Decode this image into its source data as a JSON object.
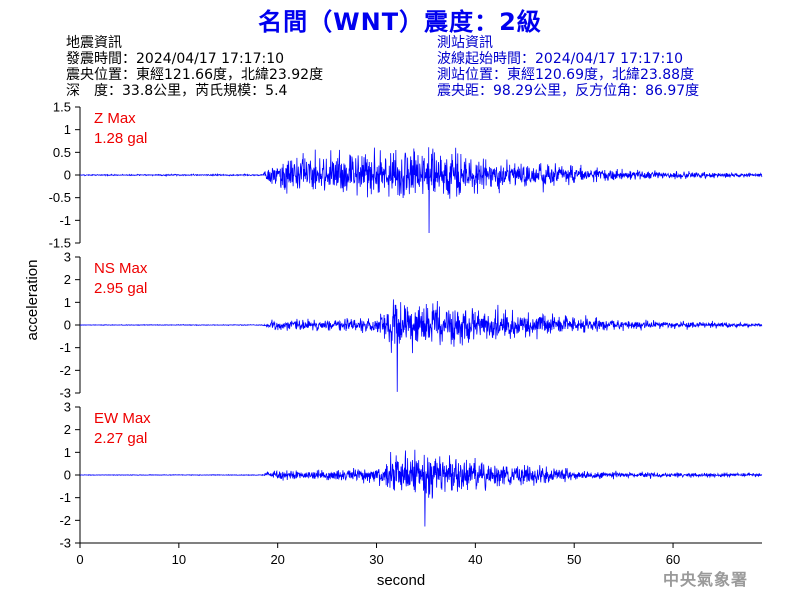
{
  "title": "名間（WNT）震度：2級",
  "quake_info": {
    "heading": "地震資訊",
    "time": "發震時間：2024/04/17 17:17:10",
    "epicenter": "震央位置：東經121.66度，北緯23.92度",
    "depth_magnitude": "深　度：33.8公里，芮氏規模：5.4"
  },
  "station_info": {
    "heading": "測站資訊",
    "wave_start": "波線起始時間：2024/04/17 17:17:10",
    "location": "測站位置：東經120.69度，北緯23.88度",
    "distance_azimuth": "震央距：98.29公里，反方位角：86.97度"
  },
  "watermark": "中央氣象署",
  "colors": {
    "title": "#0000ee",
    "trace": "#0000ff",
    "max_label": "#ee0000",
    "station_info": "#0000cc"
  },
  "chart_data": [
    {
      "type": "line",
      "component": "Z",
      "max_label": "Z Max",
      "max_value": "1.28 gal",
      "ylabel": "acceleration",
      "xlabel": "",
      "ylim": [
        -1.5,
        1.5
      ],
      "yticks": [
        1.5,
        1,
        0.5,
        0,
        -0.5,
        -1,
        -1.5
      ],
      "xlim": [
        0,
        69
      ],
      "envelope": {
        "x": [
          0,
          18.5,
          19.5,
          22,
          26,
          30,
          33,
          35,
          37,
          40,
          44,
          50,
          55,
          60,
          69
        ],
        "amp": [
          0.02,
          0.03,
          0.55,
          0.75,
          0.85,
          0.9,
          0.95,
          0.95,
          0.8,
          0.7,
          0.5,
          0.35,
          0.2,
          0.12,
          0.07
        ]
      },
      "peak": {
        "x": 35.3,
        "y": -1.28
      }
    },
    {
      "type": "line",
      "component": "NS",
      "max_label": "NS Max",
      "max_value": "2.95 gal",
      "ylabel": "acceleration",
      "xlabel": "",
      "ylim": [
        -3,
        3
      ],
      "yticks": [
        3,
        2,
        1,
        0,
        -1,
        -2,
        -3
      ],
      "xlim": [
        0,
        69
      ],
      "envelope": {
        "x": [
          0,
          18.5,
          19.5,
          25,
          30,
          31.5,
          33,
          35,
          37,
          40,
          44,
          50,
          55,
          60,
          69
        ],
        "amp": [
          0.02,
          0.03,
          0.4,
          0.45,
          0.6,
          1.9,
          2.0,
          1.9,
          1.8,
          1.4,
          1.0,
          0.6,
          0.4,
          0.25,
          0.12
        ]
      },
      "peak": {
        "x": 32.1,
        "y": -2.95
      }
    },
    {
      "type": "line",
      "component": "EW",
      "max_label": "EW Max",
      "max_value": "2.27 gal",
      "ylabel": "acceleration",
      "xlabel": "second",
      "ylim": [
        -3,
        3
      ],
      "yticks": [
        3,
        2,
        1,
        0,
        -1,
        -2,
        -3
      ],
      "xlim": [
        0,
        69
      ],
      "xticks": [
        0,
        10,
        20,
        30,
        40,
        50,
        60
      ],
      "envelope": {
        "x": [
          0,
          18.5,
          19.5,
          25,
          30,
          31.5,
          33,
          35,
          37,
          40,
          44,
          46,
          50,
          55,
          60,
          69
        ],
        "amp": [
          0.02,
          0.03,
          0.35,
          0.4,
          0.55,
          1.4,
          1.6,
          1.7,
          1.5,
          1.3,
          0.9,
          0.7,
          0.35,
          0.25,
          0.18,
          0.1
        ]
      },
      "peak": {
        "x": 34.9,
        "y": -2.27
      }
    }
  ]
}
